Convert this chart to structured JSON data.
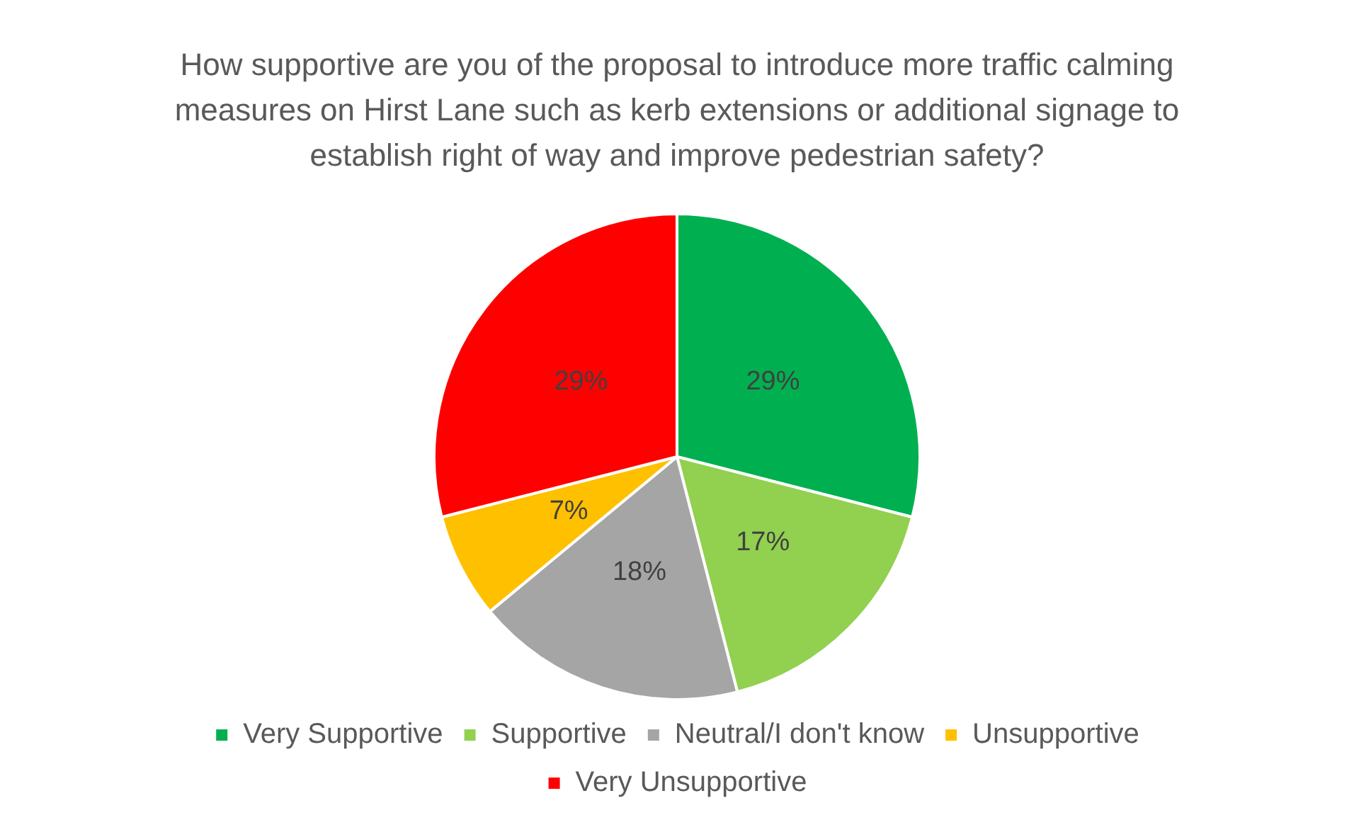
{
  "chart_data": {
    "type": "pie",
    "title": "How supportive are you of the proposal to introduce more traffic calming measures on Hirst Lane such as kerb extensions or additional signage to establish right of way and improve pedestrian safety?",
    "categories": [
      "Very Supportive",
      "Supportive",
      "Neutral/I don't know",
      "Unsupportive",
      "Very Unsupportive"
    ],
    "values": [
      29,
      17,
      18,
      7,
      29
    ],
    "value_labels": [
      "29%",
      "17%",
      "18%",
      "7%",
      "29%"
    ],
    "colors": [
      "#00b050",
      "#92d050",
      "#a5a5a5",
      "#ffc000",
      "#ff0000"
    ],
    "legend": "bottom"
  }
}
